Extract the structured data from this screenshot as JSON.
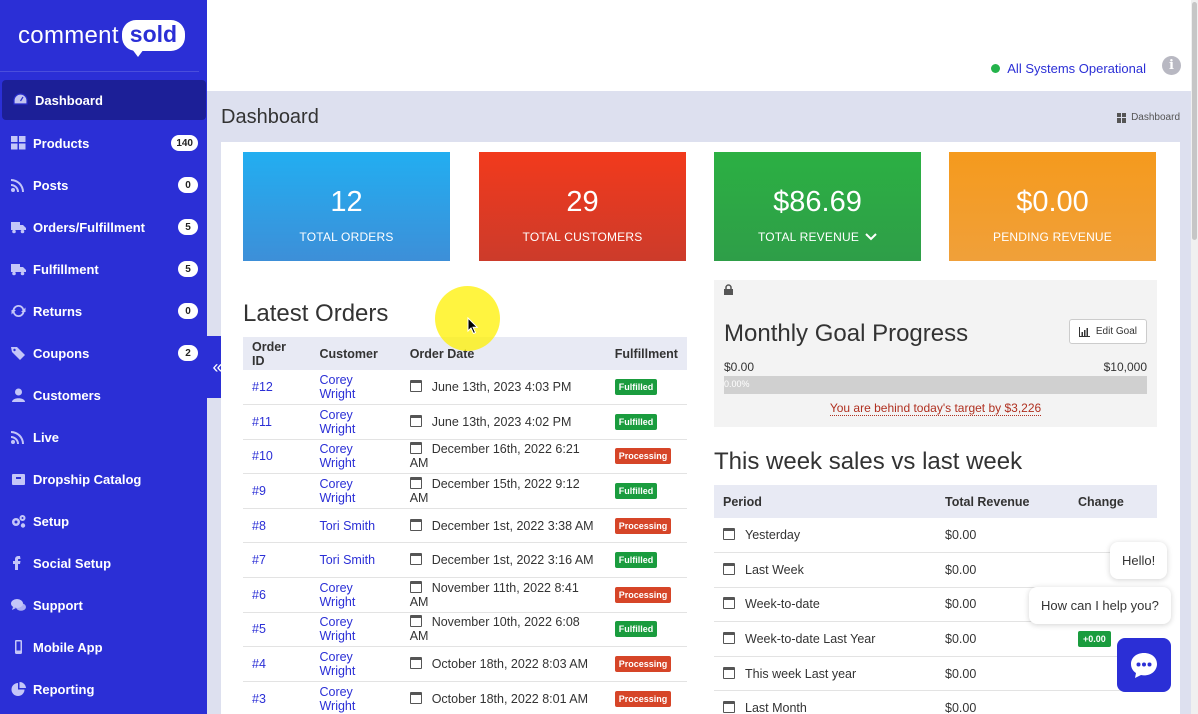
{
  "brand": {
    "word": "comment",
    "bubble": "sold"
  },
  "sidebar": {
    "items": [
      {
        "label": "Dashboard",
        "icon": "dashboard-icon",
        "badge": null,
        "active": true
      },
      {
        "label": "Products",
        "icon": "grid-icon",
        "badge": "140"
      },
      {
        "label": "Posts",
        "icon": "rss-icon",
        "badge": "0"
      },
      {
        "label": "Orders/Fulfillment",
        "icon": "truck-icon",
        "badge": "5"
      },
      {
        "label": "Fulfillment",
        "icon": "truck-icon",
        "badge": "5"
      },
      {
        "label": "Returns",
        "icon": "refresh-icon",
        "badge": "0"
      },
      {
        "label": "Coupons",
        "icon": "tag-icon",
        "badge": "2"
      },
      {
        "label": "Customers",
        "icon": "user-icon",
        "badge": null
      },
      {
        "label": "Live",
        "icon": "rss-icon",
        "badge": null
      },
      {
        "label": "Dropship Catalog",
        "icon": "box-icon",
        "badge": null
      },
      {
        "label": "Setup",
        "icon": "gears-icon",
        "badge": null
      },
      {
        "label": "Social Setup",
        "icon": "facebook-icon",
        "badge": null
      },
      {
        "label": "Support",
        "icon": "chat-icon",
        "badge": null
      },
      {
        "label": "Mobile App",
        "icon": "mobile-icon",
        "badge": null
      },
      {
        "label": "Reporting",
        "icon": "pie-chart-icon",
        "badge": null
      }
    ],
    "collapse_glyph": "«"
  },
  "topbar": {
    "status": "All Systems Operational",
    "info_glyph": "i"
  },
  "page": {
    "title": "Dashboard",
    "breadcrumb": "Dashboard"
  },
  "stats": [
    {
      "value": "12",
      "label": "TOTAL ORDERS"
    },
    {
      "value": "29",
      "label": "TOTAL CUSTOMERS"
    },
    {
      "value": "$86.69",
      "label": "TOTAL REVENUE"
    },
    {
      "value": "$0.00",
      "label": "PENDING REVENUE"
    }
  ],
  "latest_orders": {
    "title": "Latest Orders",
    "headers": [
      "Order ID",
      "Customer",
      "Order Date",
      "Fulfillment"
    ],
    "rows": [
      {
        "id": "#12",
        "customer": "Corey Wright",
        "date": "June 13th, 2023 4:03 PM",
        "status": "Fulfilled"
      },
      {
        "id": "#11",
        "customer": "Corey Wright",
        "date": "June 13th, 2023 4:02 PM",
        "status": "Fulfilled"
      },
      {
        "id": "#10",
        "customer": "Corey Wright",
        "date": "December 16th, 2022 6:21 AM",
        "status": "Processing"
      },
      {
        "id": "#9",
        "customer": "Corey Wright",
        "date": "December 15th, 2022 9:12 AM",
        "status": "Fulfilled"
      },
      {
        "id": "#8",
        "customer": "Tori Smith",
        "date": "December 1st, 2022 3:38 AM",
        "status": "Processing"
      },
      {
        "id": "#7",
        "customer": "Tori Smith",
        "date": "December 1st, 2022 3:16 AM",
        "status": "Fulfilled"
      },
      {
        "id": "#6",
        "customer": "Corey Wright",
        "date": "November 11th, 2022 8:41 AM",
        "status": "Processing"
      },
      {
        "id": "#5",
        "customer": "Corey Wright",
        "date": "November 10th, 2022 6:08 AM",
        "status": "Fulfilled"
      },
      {
        "id": "#4",
        "customer": "Corey Wright",
        "date": "October 18th, 2022 8:03 AM",
        "status": "Processing"
      },
      {
        "id": "#3",
        "customer": "Corey Wright",
        "date": "October 18th, 2022 8:01 AM",
        "status": "Processing"
      }
    ]
  },
  "goal": {
    "title": "Monthly Goal Progress",
    "edit_label": "Edit Goal",
    "min": "$0.00",
    "max": "$10,000",
    "progress_label": "0.00%",
    "progress_fraction": 0,
    "behind_text": "You are behind today's target by $3,226"
  },
  "week": {
    "title": "This week sales vs last week",
    "headers": [
      "Period",
      "Total Revenue",
      "Change"
    ],
    "rows": [
      {
        "period": "Yesterday",
        "revenue": "$0.00",
        "change": ""
      },
      {
        "period": "Last Week",
        "revenue": "$0.00",
        "change": ""
      },
      {
        "period": "Week-to-date",
        "revenue": "$0.00",
        "change": ""
      },
      {
        "period": "Week-to-date Last Year",
        "revenue": "$0.00",
        "change": "+0.00"
      },
      {
        "period": "This week Last year",
        "revenue": "$0.00",
        "change": ""
      },
      {
        "period": "Last Month",
        "revenue": "$0.00",
        "change": ""
      }
    ]
  },
  "chat": {
    "hello": "Hello!",
    "help": "How can I help you?"
  },
  "colors": {
    "brand": "#2b2fd6",
    "fulfilled": "#1a9c3e",
    "processing": "#d64528"
  }
}
